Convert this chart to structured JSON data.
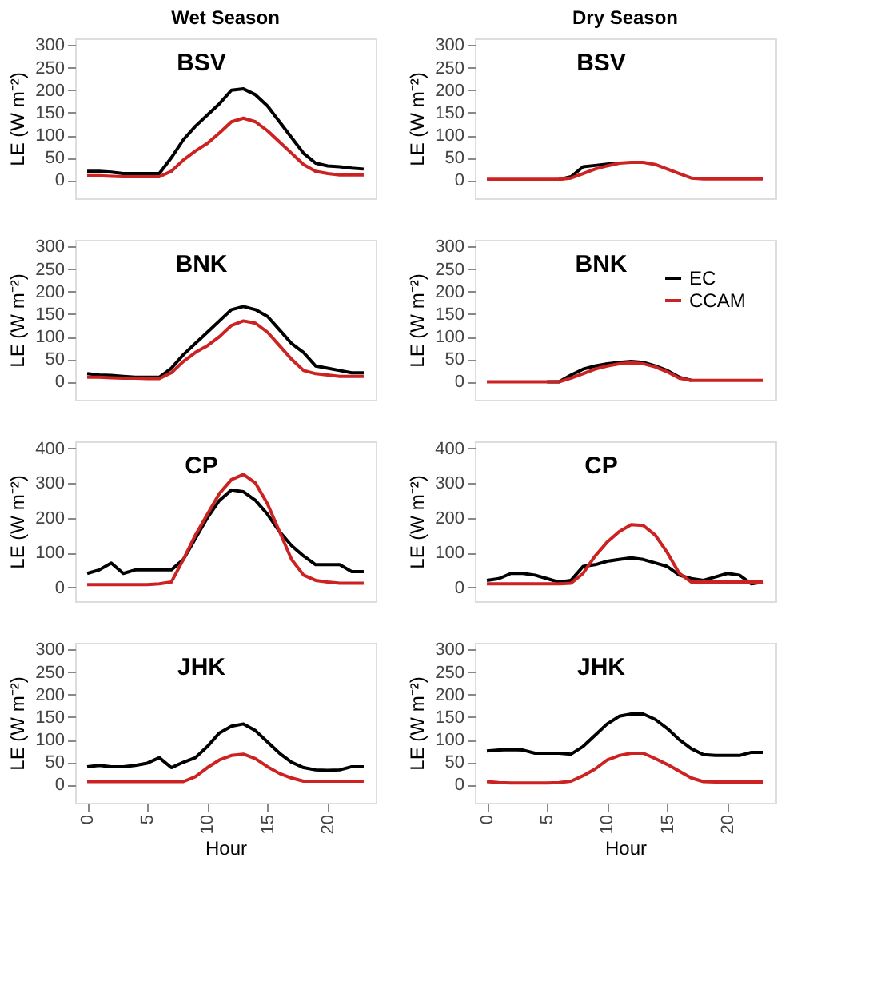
{
  "chart_data": [
    {
      "type": "line",
      "title": "Wet Season",
      "annotations": [
        "BSV"
      ],
      "ylabel": "LE (W m⁻²)",
      "x": [
        0,
        1,
        2,
        3,
        4,
        5,
        6,
        7,
        8,
        9,
        10,
        11,
        12,
        13,
        14,
        15,
        16,
        17,
        18,
        19,
        20,
        21,
        22,
        23
      ],
      "xlim": [
        -1,
        24
      ],
      "xticks": [
        0,
        5,
        10,
        15,
        20
      ],
      "ylim": [
        -40,
        315
      ],
      "yticks": [
        0,
        50,
        100,
        150,
        200,
        250,
        300
      ],
      "tick_labels": "y",
      "grid": false,
      "legend": false,
      "series": [
        {
          "color": "#000000",
          "values": [
            20,
            20,
            18,
            15,
            15,
            15,
            15,
            50,
            90,
            120,
            145,
            170,
            200,
            203,
            190,
            165,
            130,
            95,
            60,
            38,
            32,
            30,
            27,
            25
          ]
        },
        {
          "color": "#cc2222",
          "values": [
            10,
            10,
            9,
            8,
            8,
            8,
            8,
            20,
            45,
            65,
            82,
            105,
            130,
            138,
            130,
            110,
            85,
            60,
            35,
            20,
            15,
            12,
            12,
            12
          ]
        }
      ]
    },
    {
      "type": "line",
      "title": "Dry Season",
      "annotations": [
        "BSV"
      ],
      "ylabel": "LE (W m⁻²)",
      "x": [
        0,
        1,
        2,
        3,
        4,
        5,
        6,
        7,
        8,
        9,
        10,
        11,
        12,
        13,
        14,
        15,
        16,
        17,
        18,
        19,
        20,
        21,
        22,
        23
      ],
      "xlim": [
        -1,
        24
      ],
      "xticks": [
        0,
        5,
        10,
        15,
        20
      ],
      "ylim": [
        -40,
        315
      ],
      "yticks": [
        0,
        50,
        100,
        150,
        200,
        250,
        300
      ],
      "tick_labels": "y",
      "grid": false,
      "legend": false,
      "series": [
        {
          "color": "#000000",
          "values": [
            null,
            null,
            null,
            null,
            null,
            null,
            2,
            8,
            30,
            33,
            36,
            38,
            null,
            null,
            null,
            null,
            null,
            null,
            null,
            null,
            null,
            null,
            null,
            null
          ]
        },
        {
          "color": "#cc2222",
          "values": [
            2,
            2,
            2,
            2,
            2,
            2,
            2,
            5,
            15,
            25,
            32,
            38,
            40,
            40,
            35,
            25,
            15,
            5,
            3,
            3,
            3,
            3,
            3,
            3
          ]
        }
      ]
    },
    {
      "type": "line",
      "annotations": [
        "BNK"
      ],
      "ylabel": "LE (W m⁻²)",
      "x": [
        0,
        1,
        2,
        3,
        4,
        5,
        6,
        7,
        8,
        9,
        10,
        11,
        12,
        13,
        14,
        15,
        16,
        17,
        18,
        19,
        20,
        21,
        22,
        23
      ],
      "xlim": [
        -1,
        24
      ],
      "xticks": [
        0,
        5,
        10,
        15,
        20
      ],
      "ylim": [
        -40,
        315
      ],
      "yticks": [
        0,
        50,
        100,
        150,
        200,
        250,
        300
      ],
      "tick_labels": "y",
      "grid": false,
      "legend": false,
      "series": [
        {
          "color": "#000000",
          "values": [
            18,
            15,
            14,
            12,
            10,
            10,
            10,
            30,
            60,
            85,
            110,
            135,
            160,
            167,
            160,
            145,
            115,
            85,
            65,
            35,
            30,
            25,
            20,
            20
          ]
        },
        {
          "color": "#cc2222",
          "values": [
            10,
            10,
            9,
            8,
            8,
            7,
            7,
            20,
            45,
            65,
            80,
            100,
            125,
            135,
            130,
            110,
            80,
            50,
            25,
            18,
            15,
            12,
            12,
            12
          ]
        }
      ]
    },
    {
      "type": "line",
      "annotations": [
        "BNK"
      ],
      "ylabel": "LE (W m⁻²)",
      "x": [
        0,
        1,
        2,
        3,
        4,
        5,
        6,
        7,
        8,
        9,
        10,
        11,
        12,
        13,
        14,
        15,
        16,
        17,
        18,
        19,
        20,
        21,
        22,
        23
      ],
      "xlim": [
        -1,
        24
      ],
      "xticks": [
        0,
        5,
        10,
        15,
        20
      ],
      "ylim": [
        -40,
        315
      ],
      "yticks": [
        0,
        50,
        100,
        150,
        200,
        250,
        300
      ],
      "tick_labels": "y",
      "grid": false,
      "legend": "top right",
      "series": [
        {
          "name": "EC",
          "color": "#000000",
          "values": [
            null,
            null,
            null,
            null,
            null,
            0,
            0,
            15,
            28,
            35,
            40,
            43,
            45,
            43,
            35,
            25,
            10,
            3,
            null,
            null,
            null,
            null,
            null,
            null
          ]
        },
        {
          "name": "CCAM",
          "color": "#cc2222",
          "values": [
            0,
            0,
            0,
            0,
            0,
            0,
            0,
            8,
            18,
            28,
            35,
            40,
            42,
            40,
            33,
            22,
            8,
            3,
            3,
            3,
            3,
            3,
            3,
            3
          ]
        }
      ]
    },
    {
      "type": "line",
      "annotations": [
        "CP"
      ],
      "ylabel": "LE (W m⁻²)",
      "x": [
        0,
        1,
        2,
        3,
        4,
        5,
        6,
        7,
        8,
        9,
        10,
        11,
        12,
        13,
        14,
        15,
        16,
        17,
        18,
        19,
        20,
        21,
        22,
        23
      ],
      "xlim": [
        -1,
        24
      ],
      "xticks": [
        0,
        5,
        10,
        15,
        20
      ],
      "ylim": [
        -40,
        420
      ],
      "yticks": [
        0,
        100,
        200,
        300,
        400
      ],
      "tick_labels": "y",
      "grid": false,
      "legend": false,
      "series": [
        {
          "color": "#000000",
          "values": [
            40,
            50,
            70,
            40,
            50,
            50,
            50,
            50,
            80,
            140,
            200,
            250,
            280,
            275,
            250,
            210,
            160,
            120,
            90,
            65,
            65,
            65,
            45,
            45
          ]
        },
        {
          "color": "#cc2222",
          "values": [
            8,
            8,
            8,
            8,
            8,
            8,
            10,
            15,
            80,
            150,
            210,
            270,
            310,
            325,
            300,
            240,
            160,
            80,
            35,
            20,
            15,
            12,
            12,
            12
          ]
        }
      ]
    },
    {
      "type": "line",
      "annotations": [
        "CP"
      ],
      "ylabel": "LE (W m⁻²)",
      "x": [
        0,
        1,
        2,
        3,
        4,
        5,
        6,
        7,
        8,
        9,
        10,
        11,
        12,
        13,
        14,
        15,
        16,
        17,
        18,
        19,
        20,
        21,
        22,
        23
      ],
      "xlim": [
        -1,
        24
      ],
      "xticks": [
        0,
        5,
        10,
        15,
        20
      ],
      "ylim": [
        -40,
        420
      ],
      "yticks": [
        0,
        100,
        200,
        300,
        400
      ],
      "tick_labels": "y",
      "grid": false,
      "legend": false,
      "series": [
        {
          "color": "#000000",
          "values": [
            20,
            25,
            40,
            40,
            35,
            25,
            15,
            20,
            60,
            65,
            75,
            80,
            85,
            80,
            70,
            60,
            35,
            25,
            20,
            30,
            40,
            35,
            10,
            15
          ]
        },
        {
          "color": "#cc2222",
          "values": [
            10,
            10,
            10,
            10,
            10,
            10,
            10,
            12,
            40,
            90,
            130,
            160,
            180,
            178,
            150,
            100,
            40,
            15,
            15,
            15,
            15,
            15,
            15,
            15
          ]
        }
      ]
    },
    {
      "type": "line",
      "annotations": [
        "JHK"
      ],
      "xlabel": "Hour",
      "ylabel": "LE (W m⁻²)",
      "x": [
        0,
        1,
        2,
        3,
        4,
        5,
        6,
        7,
        8,
        9,
        10,
        11,
        12,
        13,
        14,
        15,
        16,
        17,
        18,
        19,
        20,
        21,
        22,
        23
      ],
      "xlim": [
        -1,
        24
      ],
      "xticks": [
        0,
        5,
        10,
        15,
        20
      ],
      "ylim": [
        -40,
        315
      ],
      "yticks": [
        0,
        50,
        100,
        150,
        200,
        250,
        300
      ],
      "grid": false,
      "legend": false,
      "series": [
        {
          "color": "#000000",
          "values": [
            40,
            43,
            40,
            40,
            43,
            48,
            60,
            38,
            50,
            60,
            85,
            115,
            130,
            135,
            120,
            95,
            70,
            50,
            38,
            33,
            32,
            33,
            40,
            40
          ]
        },
        {
          "color": "#cc2222",
          "values": [
            7,
            7,
            7,
            7,
            7,
            7,
            7,
            7,
            7,
            18,
            38,
            55,
            65,
            68,
            58,
            40,
            25,
            15,
            8,
            8,
            8,
            8,
            8,
            8
          ]
        }
      ]
    },
    {
      "type": "line",
      "annotations": [
        "JHK"
      ],
      "xlabel": "Hour",
      "ylabel": "LE (W m⁻²)",
      "x": [
        0,
        1,
        2,
        3,
        4,
        5,
        6,
        7,
        8,
        9,
        10,
        11,
        12,
        13,
        14,
        15,
        16,
        17,
        18,
        19,
        20,
        21,
        22,
        23
      ],
      "xlim": [
        -1,
        24
      ],
      "xticks": [
        0,
        5,
        10,
        15,
        20
      ],
      "ylim": [
        -40,
        315
      ],
      "yticks": [
        0,
        50,
        100,
        150,
        200,
        250,
        300
      ],
      "grid": false,
      "legend": false,
      "series": [
        {
          "color": "#000000",
          "values": [
            75,
            77,
            78,
            77,
            70,
            70,
            70,
            68,
            85,
            110,
            135,
            152,
            157,
            157,
            145,
            125,
            100,
            80,
            67,
            65,
            65,
            65,
            72,
            72
          ]
        },
        {
          "color": "#cc2222",
          "values": [
            7,
            5,
            4,
            4,
            4,
            4,
            5,
            8,
            20,
            35,
            55,
            65,
            70,
            70,
            58,
            45,
            30,
            15,
            7,
            6,
            6,
            6,
            6,
            6
          ]
        }
      ]
    }
  ]
}
